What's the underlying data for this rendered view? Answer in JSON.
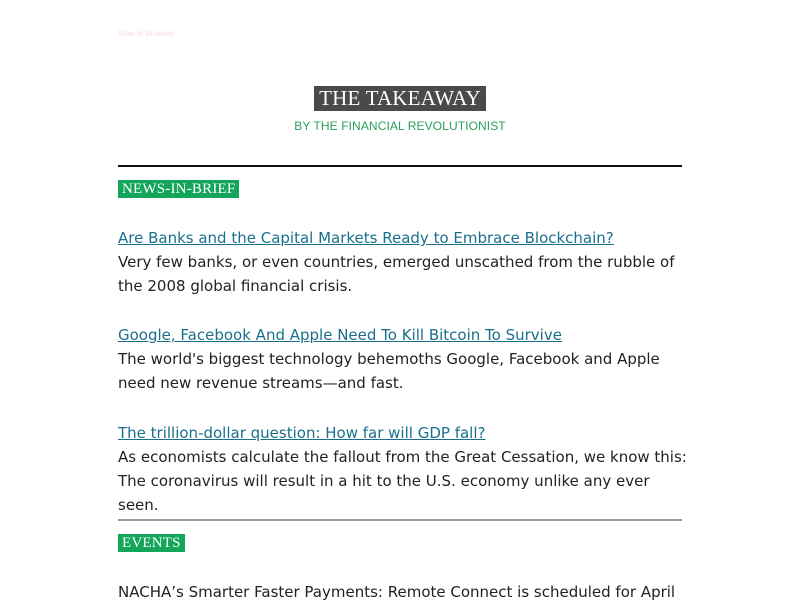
{
  "browser_link": "View in browser",
  "header": {
    "title": "THE TAKEAWAY",
    "byline": "BY THE FINANCIAL REVOLUTIONIST"
  },
  "news_section": {
    "label": "NEWS-IN-BRIEF",
    "stories": [
      {
        "headline": "Are Banks and the Capital Markets Ready to Embrace Blockchain?",
        "summary": "Very few banks, or even countries, emerged unscathed from the rubble of the 2008 global financial crisis."
      },
      {
        "headline": "Google, Facebook And Apple Need To Kill Bitcoin To Survive",
        "summary": "The world's biggest technology behemoths Google, Facebook and Apple need new revenue streams—and fast."
      },
      {
        "headline": "The trillion-dollar question: How far will GDP fall?",
        "summary": "As economists calculate the fallout from the Great Cessation, we know this: The coronavirus will result in a hit to the U.S. economy unlike any ever seen."
      }
    ]
  },
  "events_section": {
    "label": "EVENTS",
    "text": "NACHA’s Smarter Faster Payments: Remote Connect is scheduled for April"
  },
  "colors": {
    "masthead_bg": "#4a4a4a",
    "byline": "#2aa05a",
    "section_label_bg": "#13a65a",
    "link": "#1a6f8c",
    "body_text": "#222222"
  }
}
